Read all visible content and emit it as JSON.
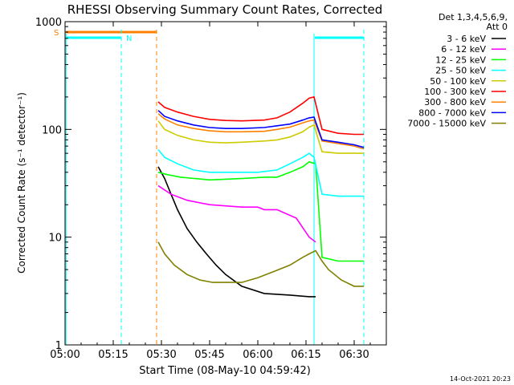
{
  "chart_data": {
    "type": "line",
    "title": "RHESSI Observing Summary Count Rates, Corrected",
    "xlabel": "Start Time (08-May-10 04:59:42)",
    "ylabel": "Corrected Count Rate (s⁻¹ detector⁻¹)",
    "yscale": "log",
    "ylim": [
      1,
      1000
    ],
    "xlim_minutes_from_05_00": [
      0,
      100
    ],
    "x_ticks": [
      "05:00",
      "05:15",
      "05:30",
      "05:45",
      "06:00",
      "06:15",
      "06:30"
    ],
    "y_ticks": [
      "1",
      "10",
      "100",
      "1000"
    ],
    "detector_info": [
      "Det 1,3,4,5,6,9,",
      "Att 0"
    ],
    "timestamp": "14-Oct-2021 20:23",
    "legend_position": "right",
    "flags": [
      {
        "label": "S",
        "color": "#ff8000",
        "x_start": 0,
        "x_end": 28.5
      },
      {
        "label": "N",
        "color": "#00ffff",
        "x_start": 0,
        "x_end": 17.5
      },
      {
        "label": "",
        "color": "#00ffff",
        "x_start": 77.5,
        "x_end": 93
      }
    ],
    "vlines": [
      {
        "x": 17.5,
        "color": "#00ffff"
      },
      {
        "x": 28.5,
        "color": "#ff8000"
      },
      {
        "x": 93,
        "color": "#00ffff"
      }
    ],
    "solid_vlines": [
      {
        "x": 0.3,
        "color": "#00ffff"
      },
      {
        "x": 77.5,
        "color": "#00ffff"
      }
    ],
    "series": [
      {
        "name": "3 - 6 keV",
        "color": "#000000",
        "x": [
          29,
          31,
          33,
          35,
          38,
          41,
          44,
          47,
          50,
          55,
          62,
          70,
          76,
          78
        ],
        "y": [
          45,
          35,
          25,
          18,
          12,
          9,
          7,
          5.5,
          4.5,
          3.5,
          3,
          2.9,
          2.8,
          2.8
        ]
      },
      {
        "name": "6 - 12 keV",
        "color": "#ff00ff",
        "x": [
          29,
          33,
          38,
          45,
          55,
          60,
          62,
          66,
          72,
          76,
          78
        ],
        "y": [
          30,
          25,
          22,
          20,
          19,
          19,
          18,
          18,
          15,
          10,
          9
        ]
      },
      {
        "name": "12 - 25 keV",
        "color": "#00ff00",
        "x": [
          29,
          32,
          36,
          45,
          55,
          62,
          66,
          70,
          74,
          76,
          78,
          80,
          85,
          90,
          93
        ],
        "y": [
          40,
          38,
          36,
          34,
          35,
          36,
          36,
          40,
          45,
          50,
          48,
          6.5,
          6,
          6,
          6
        ]
      },
      {
        "name": "25 - 50 keV",
        "color": "#00ffff",
        "x": [
          29,
          31,
          35,
          40,
          45,
          50,
          55,
          60,
          66,
          70,
          74,
          76,
          77.5,
          80,
          85,
          90,
          93
        ],
        "y": [
          65,
          55,
          48,
          42,
          40,
          40,
          40,
          40,
          42,
          48,
          55,
          60,
          55,
          25,
          24,
          24,
          24
        ]
      },
      {
        "name": "50 - 100 keV",
        "color": "#cccc00",
        "x": [
          29,
          31,
          35,
          40,
          45,
          50,
          55,
          62,
          66,
          70,
          74,
          76,
          77.5,
          80,
          85,
          90,
          93
        ],
        "y": [
          120,
          100,
          88,
          80,
          76,
          75,
          76,
          78,
          80,
          85,
          95,
          105,
          110,
          62,
          60,
          60,
          60
        ]
      },
      {
        "name": "100 - 300 keV",
        "color": "#ff0000",
        "x": [
          29,
          31,
          35,
          40,
          45,
          50,
          55,
          62,
          66,
          70,
          74,
          76,
          77.5,
          80,
          85,
          90,
          93
        ],
        "y": [
          180,
          160,
          145,
          132,
          124,
          121,
          120,
          122,
          128,
          145,
          175,
          195,
          200,
          100,
          92,
          90,
          90
        ]
      },
      {
        "name": "300 - 800 keV",
        "color": "#ff8000",
        "x": [
          29,
          31,
          35,
          40,
          45,
          50,
          55,
          62,
          66,
          70,
          74,
          76,
          77.5,
          80,
          85,
          90,
          93
        ],
        "y": [
          140,
          125,
          110,
          102,
          97,
          95,
          95,
          96,
          100,
          105,
          115,
          120,
          122,
          78,
          74,
          70,
          66
        ]
      },
      {
        "name": "800 - 7000 keV",
        "color": "#0000ff",
        "x": [
          29,
          31,
          35,
          40,
          45,
          50,
          55,
          62,
          66,
          70,
          74,
          76,
          77.5,
          80,
          85,
          90,
          93
        ],
        "y": [
          150,
          132,
          120,
          110,
          104,
          102,
          102,
          104,
          108,
          112,
          122,
          128,
          130,
          80,
          76,
          72,
          68
        ]
      },
      {
        "name": "7000 - 15000 keV",
        "color": "#808000",
        "x": [
          29,
          31,
          34,
          38,
          42,
          46,
          50,
          55,
          60,
          65,
          70,
          74,
          76,
          78,
          80,
          82,
          86,
          90,
          93
        ],
        "y": [
          9,
          7,
          5.5,
          4.5,
          4,
          3.8,
          3.8,
          3.8,
          4.2,
          4.8,
          5.5,
          6.5,
          7,
          7.5,
          6,
          5,
          4,
          3.5,
          3.5
        ]
      }
    ]
  }
}
